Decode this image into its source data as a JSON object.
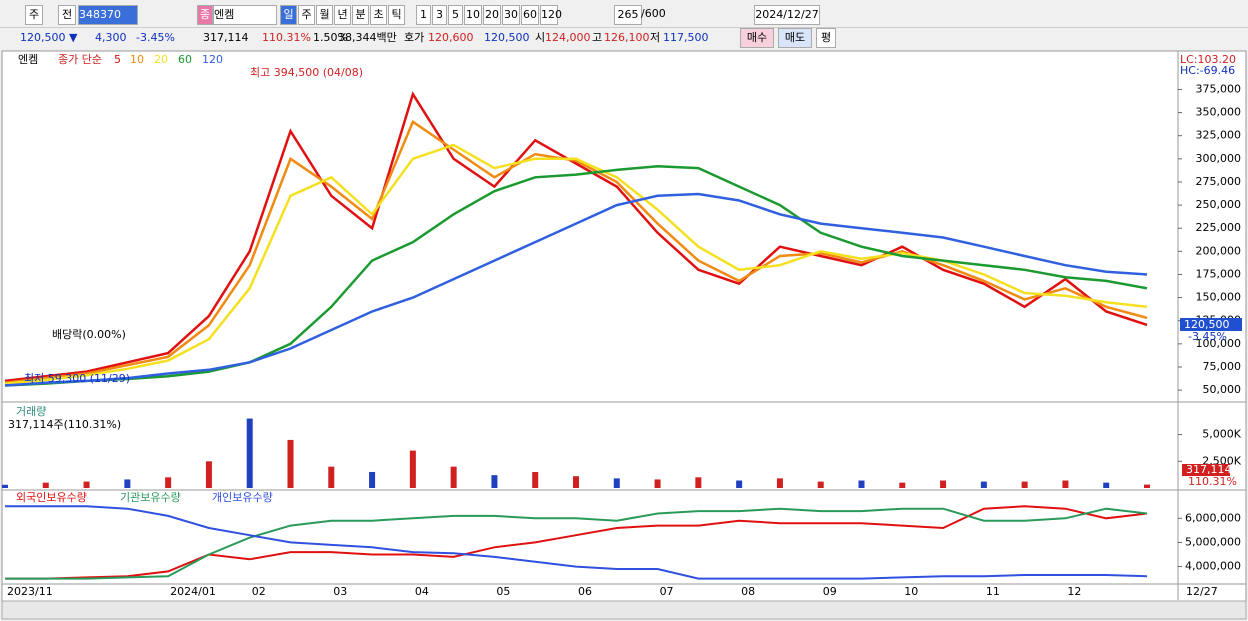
{
  "toolbar": {
    "period": "주",
    "view": "전",
    "code": "348370",
    "tag": "종",
    "name": "엔켐",
    "units": [
      "일",
      "주",
      "월",
      "년",
      "분",
      "초",
      "틱"
    ],
    "steps": [
      "1",
      "3",
      "5",
      "10",
      "20",
      "30",
      "60",
      "120"
    ],
    "count": "265",
    "max": "/600",
    "date": "2024/12/27"
  },
  "info_bar": {
    "price": "120,500 ▼",
    "change": "4,300",
    "rate": "-3.45%",
    "volume": "317,114",
    "volume_rate": "110.31%",
    "turnover": "1.50%",
    "amount": "38,344백만",
    "quote_label": "호가",
    "ask": "120,600",
    "bid": "120,500",
    "open_label": "시",
    "open": "124,000",
    "high_label": "고",
    "high": "126,100",
    "low_label": "저",
    "low": "117,500",
    "buy": "매수",
    "sell": "매도",
    "avg": "평"
  },
  "chart_data": [
    {
      "type": "line",
      "title": "엔켐",
      "subtitle": "종가 단순",
      "series": [
        {
          "name": "5",
          "color": "#e01010",
          "values": [
            60000,
            65000,
            70000,
            80000,
            90000,
            130000,
            200000,
            330000,
            260000,
            225000,
            370000,
            300000,
            270000,
            320000,
            295000,
            270000,
            220000,
            180000,
            165000,
            205000,
            195000,
            185000,
            205000,
            180000,
            165000,
            140000,
            170000,
            135000,
            120500
          ]
        },
        {
          "name": "10",
          "color": "#f08a10",
          "values": [
            58000,
            63000,
            68000,
            77000,
            86000,
            120000,
            185000,
            300000,
            270000,
            235000,
            340000,
            310000,
            280000,
            305000,
            298000,
            275000,
            230000,
            190000,
            168000,
            195000,
            198000,
            188000,
            200000,
            185000,
            168000,
            148000,
            160000,
            140000,
            128000
          ]
        },
        {
          "name": "20",
          "color": "#f5e020",
          "values": [
            57000,
            61000,
            66000,
            73000,
            82000,
            105000,
            160000,
            260000,
            280000,
            240000,
            300000,
            315000,
            290000,
            300000,
            300000,
            280000,
            245000,
            205000,
            180000,
            185000,
            200000,
            192000,
            198000,
            190000,
            175000,
            155000,
            152000,
            145000,
            140000
          ]
        },
        {
          "name": "60",
          "color": "#1a9a30",
          "values": [
            55000,
            57000,
            60000,
            62000,
            65000,
            70000,
            80000,
            100000,
            140000,
            190000,
            210000,
            240000,
            265000,
            280000,
            283000,
            288000,
            292000,
            290000,
            270000,
            250000,
            220000,
            205000,
            195000,
            190000,
            185000,
            180000,
            172000,
            168000,
            160000
          ]
        },
        {
          "name": "120",
          "color": "#3060e0",
          "values": [
            55000,
            58000,
            60000,
            63000,
            68000,
            72000,
            80000,
            95000,
            115000,
            135000,
            150000,
            170000,
            190000,
            210000,
            230000,
            250000,
            260000,
            262000,
            255000,
            240000,
            230000,
            225000,
            220000,
            215000,
            205000,
            195000,
            185000,
            178000,
            175000
          ]
        }
      ],
      "ylim": [
        39300,
        409000
      ],
      "yticks": [
        {
          "value": 50000,
          "label": "50,000"
        },
        {
          "value": 75000,
          "label": "75,000"
        },
        {
          "value": 100000,
          "label": "100,000"
        },
        {
          "value": 125000,
          "label": "125,000"
        },
        {
          "value": 150000,
          "label": "150,000"
        },
        {
          "value": 175000,
          "label": "175,000"
        },
        {
          "value": 200000,
          "label": "200,000"
        },
        {
          "value": 225000,
          "label": "225,000"
        },
        {
          "value": 250000,
          "label": "250,000"
        },
        {
          "value": 275000,
          "label": "275,000"
        },
        {
          "value": 300000,
          "label": "300,000"
        },
        {
          "value": 325000,
          "label": "325,000"
        },
        {
          "value": 350000,
          "label": "350,000"
        },
        {
          "value": 375000,
          "label": "375,000"
        }
      ],
      "annotations": {
        "high": "최고 394,500 (04/08)",
        "dividend": "배당락(0.00%)",
        "low": "최저 59,300 (11/29)",
        "lc": "LC:103.20",
        "hc": "HC:-69.46",
        "last": "120,500",
        "last_rate": "-3.45%"
      }
    },
    {
      "type": "bar",
      "title": "거래량",
      "subtitle": "317,114주(110.31%)",
      "color": "#d02020",
      "values": [
        300000,
        500000,
        600000,
        800000,
        1000000,
        2500000,
        6500000,
        4500000,
        2000000,
        1500000,
        3500000,
        2000000,
        1200000,
        1500000,
        1100000,
        900000,
        800000,
        1000000,
        700000,
        900000,
        600000,
        700000,
        500000,
        700000,
        600000,
        600000,
        700000,
        500000,
        317114
      ],
      "ylim": [
        0,
        7300000
      ],
      "yticks": [
        {
          "value": 2500000,
          "label": "2,500K"
        },
        {
          "value": 5000000,
          "label": "5,000K"
        }
      ],
      "annotations": {
        "last": "317,114",
        "last_rate": "110.31%"
      }
    },
    {
      "type": "line",
      "categories": [
        "2023/11",
        null,
        null,
        null,
        "2024/01",
        null,
        "02",
        null,
        "03",
        null,
        "04",
        null,
        "05",
        null,
        "06",
        null,
        "07",
        null,
        "08",
        null,
        "09",
        null,
        "10",
        null,
        "11",
        null,
        "12",
        null,
        "12/27"
      ],
      "series": [
        {
          "name": "외국인보유수량",
          "color": "#e01010",
          "values": [
            3500000,
            3500000,
            3550000,
            3600000,
            3800000,
            4500000,
            4300000,
            4600000,
            4600000,
            4500000,
            4500000,
            4400000,
            4800000,
            5000000,
            5300000,
            5600000,
            5700000,
            5700000,
            5900000,
            5800000,
            5800000,
            5800000,
            5700000,
            5600000,
            6400000,
            6500000,
            6400000,
            6000000,
            6200000
          ]
        },
        {
          "name": "기관보유수량",
          "color": "#2a9a5a",
          "values": [
            3500000,
            3500000,
            3500000,
            3550000,
            3600000,
            4500000,
            5200000,
            5700000,
            5900000,
            5900000,
            6000000,
            6100000,
            6100000,
            6000000,
            6000000,
            5900000,
            6200000,
            6300000,
            6300000,
            6400000,
            6300000,
            6300000,
            6400000,
            6400000,
            5900000,
            5900000,
            6000000,
            6400000,
            6200000
          ]
        },
        {
          "name": "개인보유수량",
          "color": "#3050e0",
          "values": [
            6500000,
            6500000,
            6500000,
            6400000,
            6100000,
            5600000,
            5300000,
            5000000,
            4900000,
            4800000,
            4600000,
            4550000,
            4400000,
            4200000,
            4000000,
            3900000,
            3900000,
            3500000,
            3500000,
            3500000,
            3500000,
            3500000,
            3550000,
            3600000,
            3600000,
            3650000,
            3650000,
            3650000,
            3600000
          ]
        }
      ],
      "ylim": [
        3360000,
        6760000
      ],
      "yticks": [
        {
          "value": 4000000,
          "label": "4,000,000"
        },
        {
          "value": 5000000,
          "label": "5,000,000"
        },
        {
          "value": 6000000,
          "label": "6,000,000"
        }
      ]
    }
  ]
}
